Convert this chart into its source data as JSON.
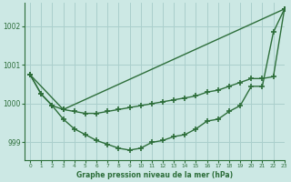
{
  "title": "Graphe pression niveau de la mer (hPa)",
  "bg_color": "#cce8e4",
  "grid_color": "#aacfcc",
  "line_color": "#2d6e3a",
  "xlim": [
    -0.5,
    23
  ],
  "ylim": [
    998.55,
    1002.6
  ],
  "yticks": [
    999,
    1000,
    1001,
    1002
  ],
  "xticks": [
    0,
    1,
    2,
    3,
    4,
    5,
    6,
    7,
    8,
    9,
    10,
    11,
    12,
    13,
    14,
    15,
    16,
    17,
    18,
    19,
    20,
    21,
    22,
    23
  ],
  "line1_x": [
    0,
    3,
    23
  ],
  "line1_y": [
    1000.75,
    999.85,
    1002.45
  ],
  "line2": {
    "x": [
      0,
      1,
      2,
      3,
      4,
      5,
      6,
      7,
      8,
      9,
      10,
      11,
      12,
      13,
      14,
      15,
      16,
      17,
      18,
      19,
      20,
      21,
      22,
      23
    ],
    "y": [
      1000.75,
      1000.25,
      999.95,
      999.85,
      999.8,
      999.75,
      999.75,
      999.8,
      999.85,
      999.9,
      999.95,
      1000.0,
      1000.05,
      1000.1,
      1000.15,
      1000.2,
      1000.3,
      1000.35,
      1000.45,
      1000.55,
      1000.65,
      1000.65,
      1000.7,
      1002.45
    ]
  },
  "line3": {
    "x": [
      0,
      1,
      2,
      3,
      4,
      5,
      6,
      7,
      8,
      9,
      10,
      11,
      12,
      13,
      14,
      15,
      16,
      17,
      18,
      19,
      20,
      21,
      22,
      23
    ],
    "y": [
      1000.75,
      1000.25,
      999.95,
      999.6,
      999.35,
      999.2,
      999.05,
      998.95,
      998.85,
      998.8,
      998.85,
      999.0,
      999.05,
      999.15,
      999.2,
      999.35,
      999.55,
      999.6,
      999.8,
      999.95,
      1000.45,
      1000.45,
      1001.85,
      1002.45
    ]
  }
}
